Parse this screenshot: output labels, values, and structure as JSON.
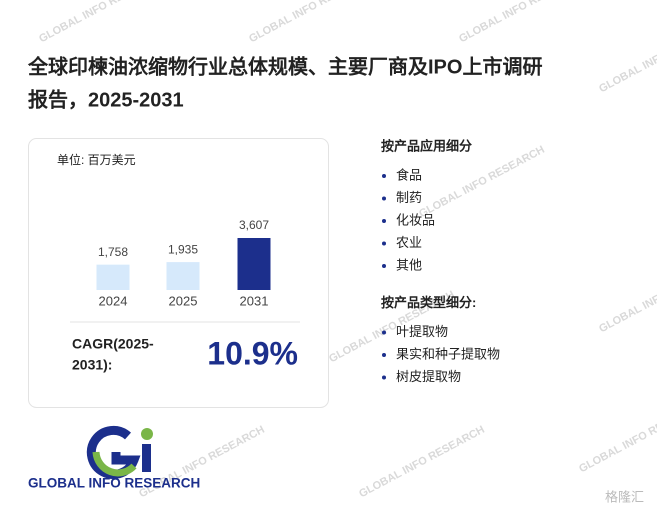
{
  "chart_data": {
    "type": "bar",
    "title_lines": [
      "全球印楝油浓缩物行业总体规模、主要厂商及IPO上市调研",
      "报告，2025-2031"
    ],
    "unit": "单位: 百万美元",
    "categories": [
      "2024",
      "2025",
      "2031"
    ],
    "values": [
      1758,
      1935,
      3607
    ],
    "value_labels": [
      "1,758",
      "1,935",
      "3,607"
    ],
    "colors": [
      "#d6e9fb",
      "#d6e9fb",
      "#1c2f8c"
    ],
    "cagr": {
      "label_lines": [
        "CAGR(2025-",
        "2031):"
      ],
      "value": "10.9%"
    },
    "segments": [
      {
        "title": "按产品应用细分",
        "items": [
          "食品",
          "制药",
          "化妆品",
          "农业",
          "其他"
        ]
      },
      {
        "title": "按产品类型细分:",
        "items": [
          "叶提取物",
          "果实和种子提取物",
          "树皮提取物"
        ]
      }
    ]
  },
  "logo": "GLOBAL INFO RESEARCH",
  "watermark": "GLOBAL INFO RESEARCH",
  "brand_watermark": "格隆汇"
}
